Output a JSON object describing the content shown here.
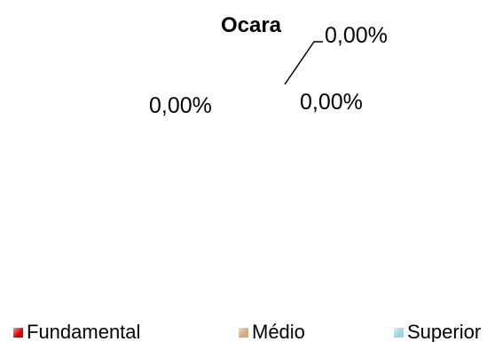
{
  "chart_data": {
    "type": "pie",
    "title": "Ocara",
    "categories": [
      "Fundamental",
      "Médio",
      "Superior"
    ],
    "values": [
      0,
      0,
      0
    ],
    "data_labels": [
      "0,00%",
      "0,00%",
      "0,00%"
    ],
    "legend_position": "bottom",
    "colors": [
      "#e00000",
      "#d9a77a",
      "#9fd6dc"
    ]
  }
}
